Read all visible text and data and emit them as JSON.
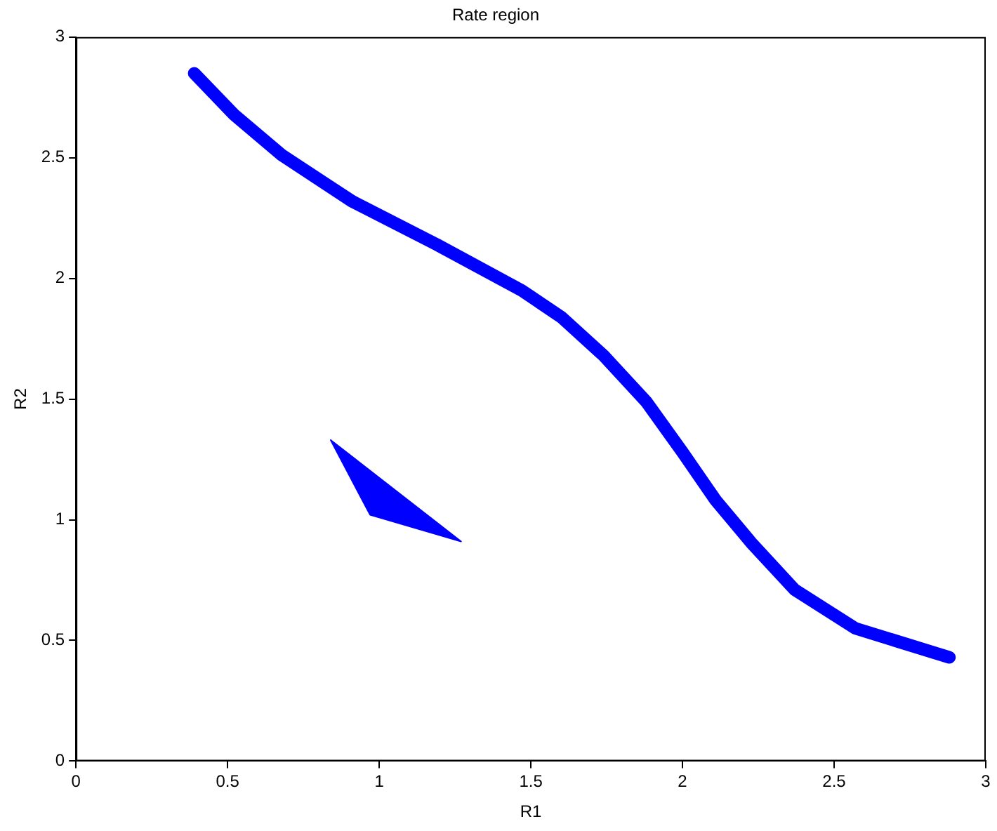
{
  "chart_data": {
    "type": "line",
    "title": "Rate region",
    "xlabel": "R1",
    "ylabel": "R2",
    "xlim": [
      0,
      3
    ],
    "ylim": [
      0,
      3
    ],
    "xticks": [
      0,
      0.5,
      1,
      1.5,
      2,
      2.5,
      3
    ],
    "yticks": [
      0,
      0.5,
      1,
      1.5,
      2,
      2.5,
      3
    ],
    "grid": false,
    "legend": false,
    "marker": "none",
    "line_style": "solid",
    "series": [
      {
        "type": "line",
        "color": "#0000ff",
        "x": [
          0.39,
          0.52,
          0.68,
          0.91,
          1.19,
          1.47,
          1.6,
          1.74,
          1.88,
          2.0,
          2.11,
          2.23,
          2.37,
          2.57,
          2.88
        ],
        "values": [
          2.85,
          2.68,
          2.51,
          2.32,
          2.14,
          1.95,
          1.84,
          1.68,
          1.49,
          1.28,
          1.08,
          0.9,
          0.71,
          0.55,
          0.43
        ]
      },
      {
        "type": "area",
        "color": "#0000ff",
        "x": [
          0.84,
          0.97,
          1.27,
          0.84
        ],
        "values": [
          1.33,
          1.02,
          0.91,
          1.33
        ]
      }
    ]
  }
}
